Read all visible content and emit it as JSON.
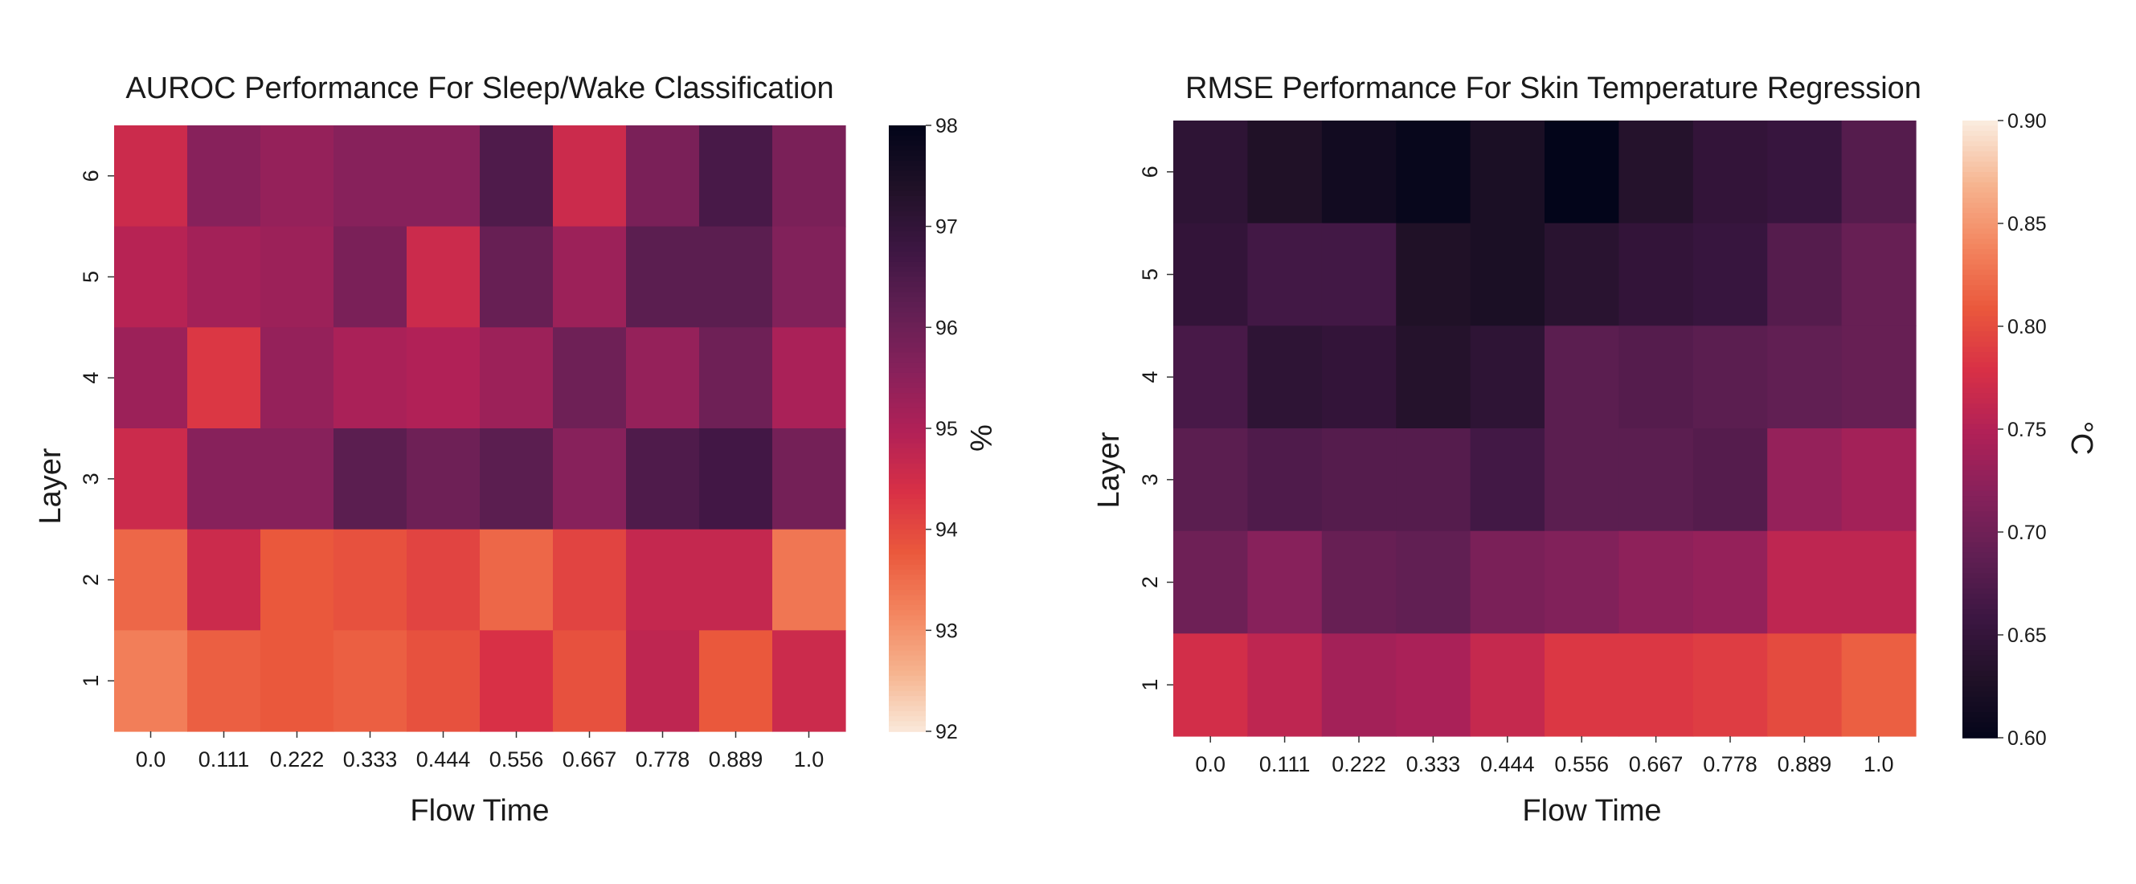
{
  "chart_data": [
    {
      "type": "heatmap",
      "title": "AUROC Performance For Sleep/Wake Classification",
      "xlabel": "Flow Time",
      "ylabel": "Layer",
      "x_categories": [
        "0.0",
        "0.111",
        "0.222",
        "0.333",
        "0.444",
        "0.556",
        "0.667",
        "0.778",
        "0.889",
        "1.0"
      ],
      "y_categories": [
        "6",
        "5",
        "4",
        "3",
        "2",
        "1"
      ],
      "values": [
        [
          94.6,
          95.6,
          95.4,
          95.6,
          95.6,
          96.5,
          94.6,
          95.8,
          96.6,
          95.8
        ],
        [
          94.9,
          95.2,
          95.3,
          95.8,
          94.6,
          96.1,
          95.3,
          96.3,
          96.3,
          95.7
        ],
        [
          95.3,
          94.3,
          95.4,
          95.1,
          95.0,
          95.3,
          96.0,
          95.4,
          96.0,
          95.1
        ],
        [
          94.6,
          95.6,
          95.6,
          96.3,
          96.0,
          96.3,
          95.6,
          96.5,
          96.7,
          95.9
        ],
        [
          93.6,
          94.6,
          93.8,
          93.9,
          94.1,
          93.6,
          94.1,
          94.7,
          94.7,
          93.4
        ],
        [
          93.3,
          93.7,
          93.8,
          93.7,
          93.9,
          94.4,
          93.9,
          94.8,
          93.8,
          94.6
        ]
      ],
      "colorbar": {
        "vmin": 92,
        "vmax": 98,
        "ticks": [
          "92",
          "93",
          "94",
          "95",
          "96",
          "97",
          "98"
        ],
        "label": "%"
      },
      "colormap": "rocket_r"
    },
    {
      "type": "heatmap",
      "title": "RMSE Performance For Skin Temperature Regression",
      "xlabel": "Flow Time",
      "ylabel": "Layer",
      "x_categories": [
        "0.0",
        "0.111",
        "0.222",
        "0.333",
        "0.444",
        "0.556",
        "0.667",
        "0.778",
        "0.889",
        "1.0"
      ],
      "y_categories": [
        "6",
        "5",
        "4",
        "3",
        "2",
        "1"
      ],
      "values": [
        [
          0.645,
          0.63,
          0.615,
          0.605,
          0.625,
          0.6,
          0.635,
          0.65,
          0.655,
          0.68
        ],
        [
          0.65,
          0.665,
          0.665,
          0.63,
          0.625,
          0.64,
          0.65,
          0.655,
          0.68,
          0.695
        ],
        [
          0.67,
          0.645,
          0.65,
          0.635,
          0.645,
          0.685,
          0.68,
          0.685,
          0.69,
          0.695
        ],
        [
          0.685,
          0.675,
          0.68,
          0.68,
          0.665,
          0.685,
          0.685,
          0.68,
          0.73,
          0.74
        ],
        [
          0.7,
          0.72,
          0.695,
          0.69,
          0.71,
          0.715,
          0.725,
          0.73,
          0.76,
          0.76
        ],
        [
          0.775,
          0.76,
          0.74,
          0.745,
          0.765,
          0.785,
          0.785,
          0.79,
          0.8,
          0.815
        ]
      ],
      "colorbar": {
        "vmin": 0.6,
        "vmax": 0.9,
        "ticks": [
          "0.60",
          "0.65",
          "0.70",
          "0.75",
          "0.80",
          "0.85",
          "0.90"
        ],
        "label": "°C"
      },
      "colormap": "rocket"
    }
  ]
}
